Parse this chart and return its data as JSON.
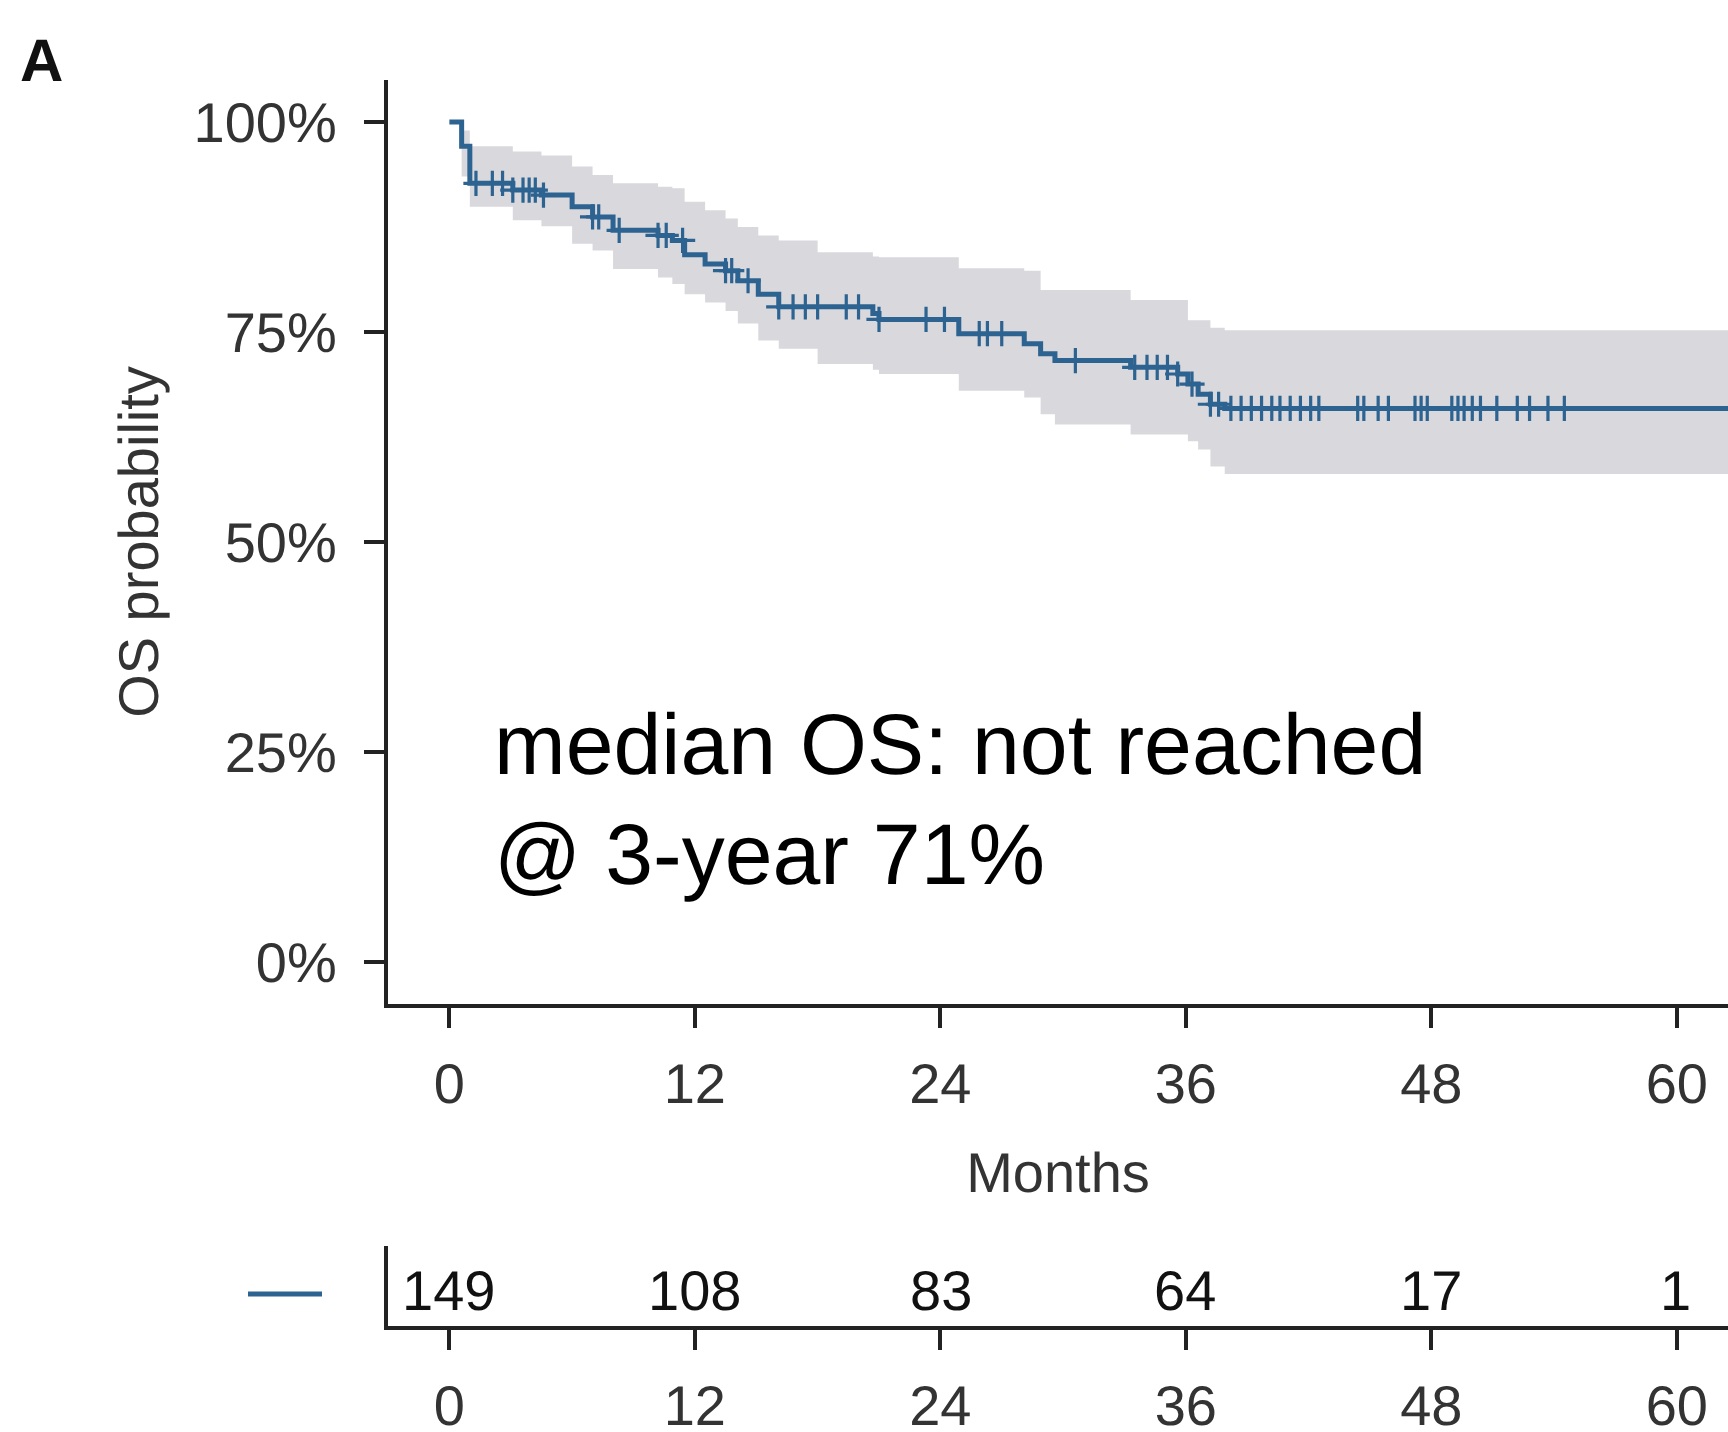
{
  "chart_data": {
    "type": "step",
    "title": "A",
    "xlabel": "Months",
    "ylabel": "OS probability",
    "annotations": [
      "median OS: not reached",
      "@ 3-year 71%",
      "149",
      "108",
      "83",
      "64",
      "17",
      "1"
    ],
    "xlim": [
      -3,
      62.5
    ],
    "xticks": [
      0,
      12,
      24,
      36,
      48,
      60
    ],
    "x2lim": [
      -3,
      62.5
    ],
    "x2ticks": [
      0,
      12,
      24,
      36,
      48,
      60
    ],
    "ylim": [
      -5,
      105
    ],
    "yticks": [
      {
        "value": 0,
        "label": "0%"
      },
      {
        "value": 25,
        "label": "25%"
      },
      {
        "value": 50,
        "label": "50%"
      },
      {
        "value": 75,
        "label": "75%"
      },
      {
        "value": 100,
        "label": "100%"
      }
    ],
    "grid": false,
    "series": [
      {
        "color": "#2c6391",
        "x": [
          0,
          0.6,
          1.0,
          3.1,
          4.5,
          6.0,
          7.0,
          8.0,
          10.2,
          10.9,
          11.5,
          12.5,
          13.5,
          14.1,
          15.1,
          16.1,
          18.0,
          20.7,
          21.0,
          24.9,
          28.1,
          28.9,
          29.6,
          33.3,
          35.6,
          36.1,
          36.6,
          37.2,
          37.9,
          62.5
        ],
        "values": [
          100,
          97.1,
          92.7,
          91.9,
          91.3,
          89.9,
          88.7,
          87.1,
          86.5,
          85.9,
          84.2,
          83.1,
          82.3,
          81.1,
          79.5,
          78.0,
          78.0,
          77.2,
          76.5,
          74.8,
          73.6,
          72.4,
          71.6,
          70.8,
          70.0,
          68.8,
          67.6,
          66.4,
          65.9,
          65.9
        ],
        "lower": [
          100,
          93.5,
          89.9,
          88.3,
          87.6,
          85.5,
          84.7,
          82.5,
          81.5,
          80.7,
          79.5,
          78.5,
          77.5,
          76.0,
          74.0,
          73.0,
          71.2,
          70.5,
          70.0,
          68.0,
          67.2,
          65.2,
          64.0,
          62.8,
          62.8,
          62.0,
          61.0,
          59.0,
          58.1,
          58.1
        ],
        "upper": [
          100,
          99.0,
          97.1,
          96.5,
          96.0,
          94.7,
          93.7,
          92.7,
          92.3,
          92.1,
          90.5,
          89.5,
          88.5,
          87.5,
          86.5,
          85.9,
          84.5,
          84.0,
          83.9,
          82.6,
          82.3,
          80.0,
          80.0,
          78.8,
          78.8,
          76.4,
          76.4,
          75.5,
          75.2,
          75.2
        ]
      },
      {
        "type": "scatter",
        "marker": "cross",
        "color": "#2c6391",
        "x": [
          1.3,
          2.1,
          2.6,
          3.1,
          3.6,
          3.9,
          4.2,
          4.6,
          7.0,
          7.3,
          8.3,
          10.2,
          10.6,
          11.4,
          13.5,
          13.8,
          14.6,
          16.1,
          16.8,
          17.4,
          18.0,
          19.4,
          20.0,
          21.0,
          23.3,
          24.2,
          25.9,
          26.3,
          27.0,
          30.6,
          33.5,
          34.1,
          34.6,
          35.1,
          35.6,
          36.3,
          37.2,
          37.6,
          38.2,
          38.7,
          39.2,
          39.7,
          40.2,
          40.6,
          41.1,
          41.6,
          42.1,
          42.5,
          44.4,
          44.7,
          45.4,
          45.9,
          47.2,
          47.5,
          47.8,
          49.0,
          49.3,
          49.6,
          50.0,
          50.4,
          51.2,
          52.2,
          52.8,
          53.7,
          54.5
        ],
        "values": [
          92.7,
          92.7,
          92.7,
          91.9,
          91.9,
          91.9,
          91.9,
          91.3,
          88.7,
          88.7,
          87.1,
          86.5,
          86.5,
          85.9,
          82.3,
          82.3,
          81.1,
          78.0,
          78.0,
          78.0,
          78.0,
          78.0,
          78.0,
          76.5,
          76.5,
          76.5,
          74.8,
          74.8,
          74.8,
          71.6,
          70.8,
          70.8,
          70.8,
          70.8,
          70.0,
          68.8,
          66.4,
          66.4,
          65.9,
          65.9,
          65.9,
          65.9,
          65.9,
          65.9,
          65.9,
          65.9,
          65.9,
          65.9,
          65.9,
          65.9,
          65.9,
          65.9,
          65.9,
          65.9,
          65.9,
          65.9,
          65.9,
          65.9,
          65.9,
          65.9,
          65.9,
          65.9,
          65.9,
          65.9,
          65.9
        ]
      }
    ]
  }
}
